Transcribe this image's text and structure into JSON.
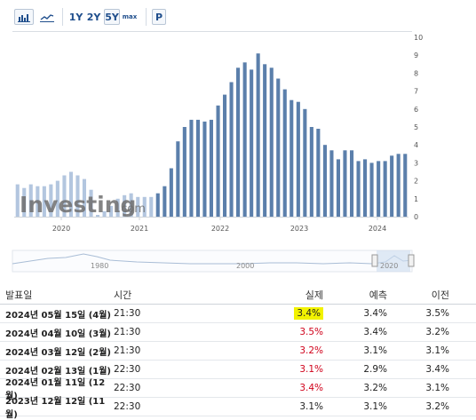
{
  "toolbar": {
    "buttons": [
      {
        "label": "",
        "icon": "bar-chart-icon"
      },
      {
        "label": "",
        "icon": "line-chart-icon"
      },
      {
        "label": "1Y"
      },
      {
        "label": "2Y"
      },
      {
        "label": "5Y"
      },
      {
        "label": "max"
      },
      {
        "label": "P"
      }
    ],
    "active": "5Y"
  },
  "watermark": {
    "text": "Investing",
    "suffix": ".com"
  },
  "navigator": {
    "labels": [
      "1980",
      "2000",
      "2020"
    ]
  },
  "chart_data": {
    "type": "bar",
    "series_color": "#5b7fab",
    "faded_color": "#b3c6df",
    "y_axis": {
      "ticks": [
        0,
        1,
        2,
        3,
        4,
        5,
        6,
        7,
        8,
        9,
        10
      ],
      "ylim": [
        0,
        10
      ],
      "position": "right"
    },
    "x_axis": {
      "tick_labels": [
        "2020",
        "2021",
        "2022",
        "2023",
        "2024"
      ]
    },
    "values": [
      1.8,
      1.6,
      1.8,
      1.7,
      1.7,
      1.8,
      2.0,
      2.3,
      2.5,
      2.3,
      2.1,
      1.5,
      0.1,
      0.3,
      0.6,
      1.0,
      1.2,
      1.3,
      1.1,
      1.1,
      1.1,
      1.3,
      1.7,
      2.7,
      4.2,
      5.0,
      5.4,
      5.4,
      5.3,
      5.4,
      6.2,
      6.8,
      7.5,
      8.3,
      8.6,
      8.2,
      9.1,
      8.5,
      8.3,
      7.7,
      7.1,
      6.5,
      6.4,
      6.0,
      5.0,
      4.9,
      4.0,
      3.7,
      3.2,
      3.7,
      3.7,
      3.1,
      3.2,
      3.0,
      3.1,
      3.1,
      3.4,
      3.5,
      3.5
    ]
  },
  "table": {
    "headers": {
      "date": "발표일",
      "time": "시간",
      "actual": "실제",
      "forecast": "예측",
      "previous": "이전"
    },
    "rows": [
      {
        "date": "2024년 05월 15일 (4월)",
        "time": "21:30",
        "actual": "3.4%",
        "forecast": "3.4%",
        "previous": "3.5%",
        "style": "highlight"
      },
      {
        "date": "2024년 04월 10일 (3월)",
        "time": "21:30",
        "actual": "3.5%",
        "forecast": "3.4%",
        "previous": "3.2%",
        "style": "red"
      },
      {
        "date": "2024년 03월 12일 (2월)",
        "time": "21:30",
        "actual": "3.2%",
        "forecast": "3.1%",
        "previous": "3.1%",
        "style": "red"
      },
      {
        "date": "2024년 02월 13일 (1월)",
        "time": "22:30",
        "actual": "3.1%",
        "forecast": "2.9%",
        "previous": "3.4%",
        "style": "red"
      },
      {
        "date": "2024년 01월 11일 (12월)",
        "time": "22:30",
        "actual": "3.4%",
        "forecast": "3.2%",
        "previous": "3.1%",
        "style": "red"
      },
      {
        "date": "2023년 12월 12일 (11월)",
        "time": "22:30",
        "actual": "3.1%",
        "forecast": "3.1%",
        "previous": "3.2%",
        "style": "plain"
      }
    ]
  }
}
